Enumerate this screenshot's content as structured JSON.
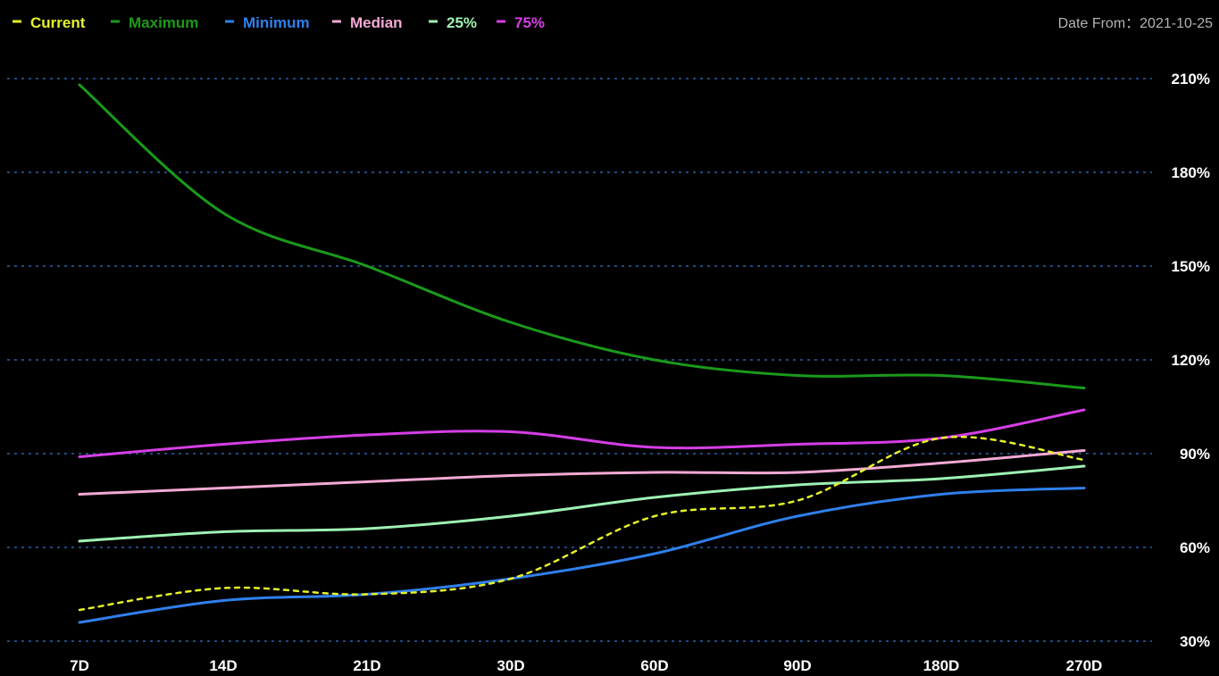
{
  "header": {
    "date_from_label": "Date From：",
    "date_from_value": "2021-10-25"
  },
  "chart_data": {
    "type": "line",
    "categories": [
      "7D",
      "14D",
      "21D",
      "30D",
      "60D",
      "90D",
      "180D",
      "270D"
    ],
    "y_ticks": [
      "30%",
      "60%",
      "90%",
      "120%",
      "150%",
      "180%",
      "210%"
    ],
    "ylim": [
      30,
      210
    ],
    "grid": true,
    "legend_position": "top-left",
    "series": [
      {
        "name": "Current",
        "color": "#e6f22a",
        "dashed": true,
        "values": [
          40,
          47,
          45,
          50,
          70,
          75,
          95,
          88
        ]
      },
      {
        "name": "Maximum",
        "color": "#1a9a1a",
        "dashed": false,
        "values": [
          208,
          167,
          150,
          132,
          120,
          115,
          115,
          111
        ]
      },
      {
        "name": "Minimum",
        "color": "#2f80ed",
        "dashed": false,
        "values": [
          36,
          43,
          45,
          50,
          58,
          70,
          77,
          79
        ]
      },
      {
        "name": "Median",
        "color": "#f4a9d6",
        "dashed": false,
        "values": [
          77,
          79,
          81,
          83,
          84,
          84,
          87,
          91
        ]
      },
      {
        "name": "25%",
        "color": "#9ef2b4",
        "dashed": false,
        "values": [
          62,
          65,
          66,
          70,
          76,
          80,
          82,
          86
        ]
      },
      {
        "name": "75%",
        "color": "#d63ee6",
        "dashed": false,
        "values": [
          89,
          93,
          96,
          97,
          92,
          93,
          95,
          104
        ]
      }
    ]
  }
}
